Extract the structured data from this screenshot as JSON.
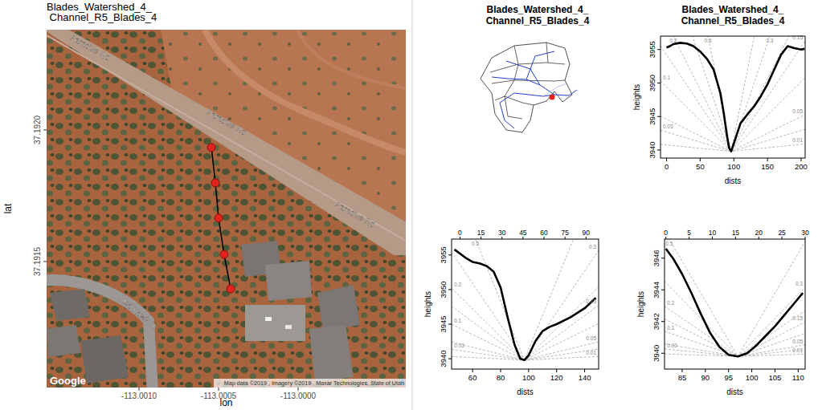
{
  "chart_data": [
    {
      "type": "map",
      "title": "Blades_Watershed_4_\n Channel_R5_Blades_4",
      "x_label": "lon",
      "y_label": "lat",
      "xlim": [
        -113.001581,
        -112.999323
      ],
      "ylim": [
        37.191021,
        37.192381
      ],
      "xticks": [
        {
          "value": -113.001,
          "label": "-113.0010"
        },
        {
          "value": -113.0005,
          "label": "-113.0005"
        },
        {
          "value": -113.0,
          "label": "-113.0000"
        }
      ],
      "yticks": [
        {
          "value": 37.1915,
          "label": "37.1915"
        },
        {
          "value": 37.192,
          "label": "37.1920"
        }
      ],
      "x": [
        -113.000545,
        -113.00052,
        -113.0005,
        -113.000465,
        -113.000424
      ],
      "values": [
        37.191933,
        37.191799,
        37.191665,
        37.191527,
        37.191396
      ],
      "color": "#e0231c",
      "marker": "circle",
      "annotations": [
        {
          "text": "Paradise Rd",
          "lon": -113.001318,
          "lat": 37.192305
        },
        {
          "text": "Paradise Rd",
          "lon": -113.00046,
          "lat": 37.192021
        },
        {
          "text": "Paradise Rd",
          "lon": -112.999652,
          "lat": 37.191671
        },
        {
          "text": "Red Hawk Dr",
          "lon": -113.001015,
          "lat": 37.191296
        }
      ],
      "logo": "Google",
      "attribution": "Map data ©2019 , Imagery ©2019 , Maxar Technologies, State of Utah"
    },
    {
      "type": "diagram",
      "title": "Blades_Watershed_4_\nChannel_R5_Blades_4"
    },
    {
      "type": "line",
      "title": "Blades_Watershed_4_\nChannel_R5_Blades_4",
      "x_label": "dists",
      "y_label": "heights",
      "color": "#000000",
      "xlim": [
        -9,
        206
      ],
      "ylim": [
        3938.8,
        3957
      ],
      "xticks": [
        0,
        50,
        100,
        150,
        200
      ],
      "yticks": [
        3940,
        3945,
        3950,
        3955
      ],
      "x": [
        0,
        5,
        10,
        20,
        30,
        40,
        50,
        60,
        70,
        80,
        85,
        90,
        93,
        96,
        100,
        105,
        110,
        120,
        130,
        140,
        150,
        160,
        170,
        180,
        190,
        200,
        205
      ],
      "values": [
        3955.3,
        3955.5,
        3955.8,
        3956,
        3955.9,
        3955.5,
        3954.7,
        3953.6,
        3952,
        3948.5,
        3945.5,
        3942,
        3940.3,
        3939.8,
        3941,
        3942.5,
        3944,
        3945.3,
        3946.5,
        3948,
        3949.8,
        3952,
        3954.2,
        3955.5,
        3955.2,
        3955,
        3955.1
      ],
      "reference_slopes": [
        0.5,
        0.3,
        0.2,
        0.15,
        0.1,
        0.05,
        0.03,
        0.01
      ]
    },
    {
      "type": "line",
      "x_label": "dists",
      "y_label": "heights",
      "color": "#000000",
      "xlim": [
        45,
        150
      ],
      "ylim": [
        3938.5,
        3957.3
      ],
      "xticks": [
        60,
        80,
        100,
        120,
        140
      ],
      "yticks": [
        3940,
        3945,
        3950,
        3955
      ],
      "x2lim": [
        -6,
        99
      ],
      "x2ticks": [
        0,
        15,
        30,
        45,
        60,
        75,
        90
      ],
      "x": [
        47,
        55,
        60,
        65,
        70,
        75,
        80,
        85,
        90,
        94,
        97,
        100,
        105,
        110,
        115,
        120,
        130,
        140,
        148
      ],
      "values": [
        3955.8,
        3954.6,
        3954,
        3953.8,
        3953.4,
        3952.6,
        3950.3,
        3946,
        3942,
        3940,
        3939.8,
        3940.5,
        3942.6,
        3944,
        3944.6,
        3945,
        3946,
        3947.3,
        3948.8
      ],
      "reference_slopes": [
        0.5,
        0.3,
        0.2,
        0.15,
        0.1,
        0.05,
        0.03,
        0.01
      ]
    },
    {
      "type": "line",
      "x_label": "dists",
      "y_label": "heights",
      "color": "#000000",
      "xlim": [
        81.2,
        111.5
      ],
      "ylim": [
        3939,
        3947.2
      ],
      "xticks": [
        85,
        90,
        95,
        100,
        105,
        110
      ],
      "yticks": [
        3940,
        3942,
        3944,
        3946
      ],
      "x2lim": [
        -0.3,
        30
      ],
      "x2ticks": [
        0,
        5,
        10,
        15,
        20,
        25,
        30
      ],
      "x": [
        81.5,
        83,
        85,
        87,
        89,
        91,
        93,
        95,
        97,
        99,
        101,
        103,
        105,
        107,
        109,
        111
      ],
      "values": [
        3946.6,
        3946,
        3945,
        3943.8,
        3942.5,
        3941.3,
        3940.4,
        3939.9,
        3939.8,
        3940,
        3940.5,
        3941.1,
        3941.7,
        3942.4,
        3943.1,
        3943.8
      ],
      "reference_slopes": [
        0.5,
        0.3,
        0.2,
        0.15,
        0.1,
        0.05,
        0.03,
        0.01
      ]
    }
  ]
}
